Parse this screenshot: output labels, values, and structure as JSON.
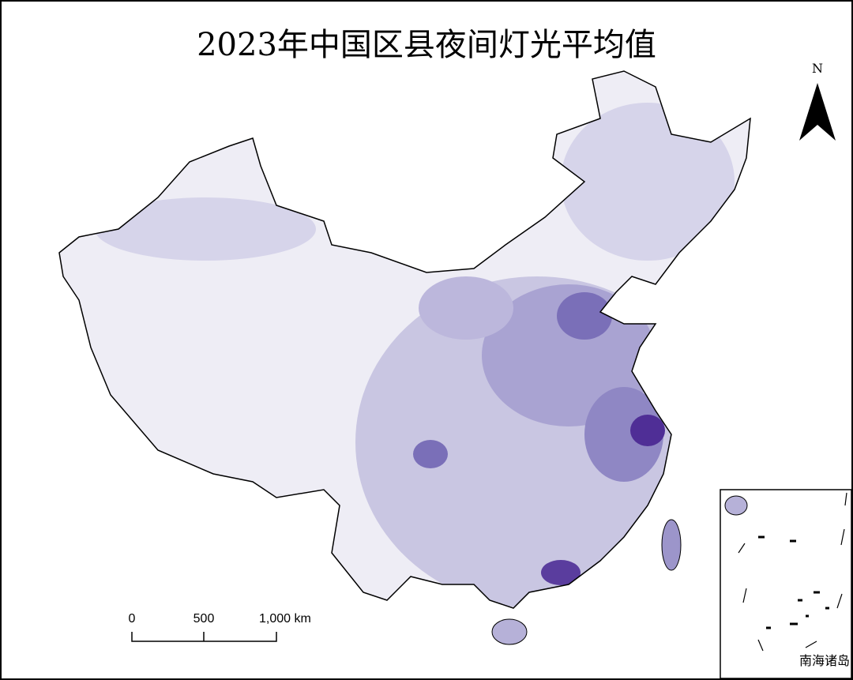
{
  "title": "2023年中国区县夜间灯光平均值",
  "north_arrow": {
    "label": "N"
  },
  "scale_bar": {
    "labels": [
      "0",
      "500",
      "1,000 km"
    ]
  },
  "inset": {
    "label": "南海诸岛"
  }
}
